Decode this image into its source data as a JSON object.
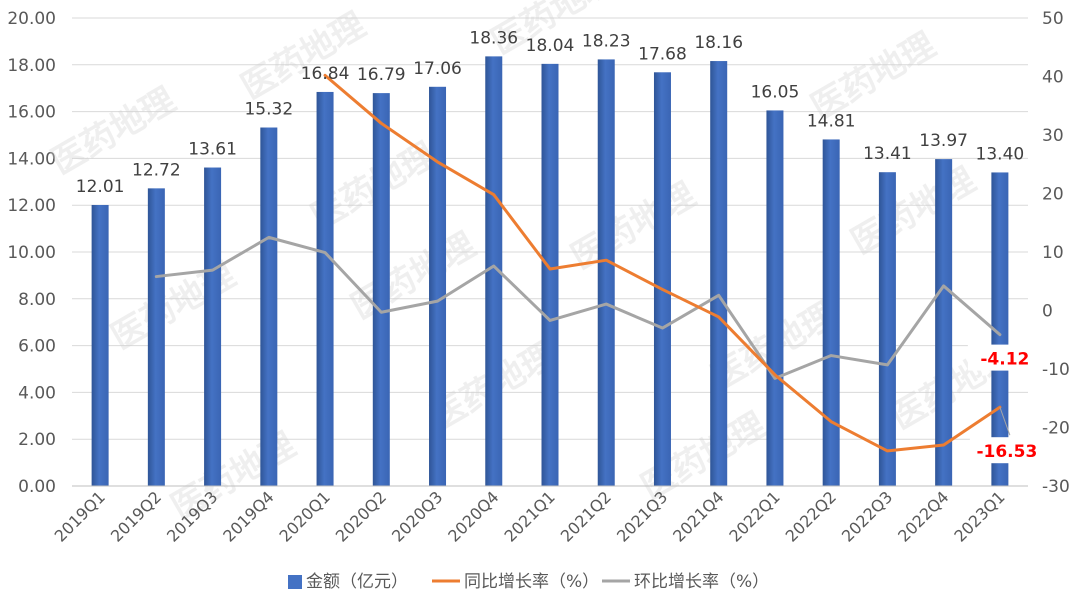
{
  "chart_data": {
    "type": "bar",
    "categories": [
      "2019Q1",
      "2019Q2",
      "2019Q3",
      "2019Q4",
      "2020Q1",
      "2020Q2",
      "2020Q3",
      "2020Q4",
      "2021Q1",
      "2021Q2",
      "2021Q3",
      "2021Q4",
      "2022Q1",
      "2022Q2",
      "2022Q3",
      "2022Q4",
      "2023Q1"
    ],
    "series": [
      {
        "name": "金额（亿元）",
        "type": "bar",
        "axis": "left",
        "color": "#4472c4",
        "values": [
          12.01,
          12.72,
          13.61,
          15.32,
          16.84,
          16.79,
          17.06,
          18.36,
          18.04,
          18.23,
          17.68,
          18.16,
          16.05,
          14.81,
          13.41,
          13.97,
          13.4
        ],
        "labels": [
          "12.01",
          "12.72",
          "13.61",
          "15.32",
          "16.84",
          "16.79",
          "17.06",
          "18.36",
          "18.04",
          "18.23",
          "17.68",
          "18.16",
          "16.05",
          "14.81",
          "13.41",
          "13.97",
          "13.40"
        ]
      },
      {
        "name": "同比增长率（%）",
        "type": "line",
        "axis": "right",
        "color": "#ed7d31",
        "values": [
          null,
          null,
          null,
          null,
          40.2,
          32.0,
          25.4,
          19.8,
          7.1,
          8.6,
          3.6,
          -1.1,
          -11.0,
          -19.0,
          -24.0,
          -23.0,
          -16.53
        ]
      },
      {
        "name": "环比增长率（%）",
        "type": "line",
        "axis": "right",
        "color": "#a5a5a5",
        "values": [
          null,
          5.8,
          6.9,
          12.5,
          9.9,
          -0.3,
          1.6,
          7.6,
          -1.7,
          1.1,
          -3.0,
          2.6,
          -11.6,
          -7.7,
          -9.3,
          4.2,
          -4.12
        ]
      }
    ],
    "callouts": [
      {
        "text": "-4.12",
        "series": 2,
        "index": 16,
        "value": -4.12,
        "color": "#ff0000"
      },
      {
        "text": "-16.53",
        "series": 1,
        "index": 16,
        "value": -16.53,
        "color": "#ff0000"
      }
    ],
    "left_axis": {
      "ylim": [
        0,
        20
      ],
      "ticks": [
        "0.00",
        "2.00",
        "4.00",
        "6.00",
        "8.00",
        "10.00",
        "12.00",
        "14.00",
        "16.00",
        "18.00",
        "20.00"
      ]
    },
    "right_axis": {
      "ylim": [
        -30,
        50
      ],
      "ticks": [
        "-30",
        "-20",
        "-10",
        "0",
        "10",
        "20",
        "30",
        "40",
        "50"
      ]
    },
    "title": "",
    "legend_position": "bottom",
    "gridlines": true,
    "watermark": "医药地理"
  }
}
